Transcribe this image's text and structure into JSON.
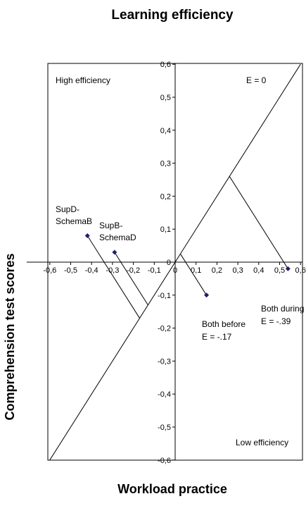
{
  "chart_data": {
    "type": "scatter",
    "title": "Learning efficiency",
    "xlabel": "Workload practice",
    "ylabel": "Comprehension test scores",
    "xlim": [
      -0.6,
      0.6
    ],
    "ylim": [
      -0.6,
      0.6
    ],
    "x_ticks": [
      "-0,6",
      "-0,5",
      "-0,4",
      "-0,3",
      "-0,2",
      "-0,1",
      "0",
      "0,1",
      "0,2",
      "0,3",
      "0,4",
      "0,5",
      "0,6"
    ],
    "y_ticks": [
      "0,6",
      "0,5",
      "0,4",
      "0,3",
      "0,2",
      "0,1",
      "0",
      "-0,1",
      "-0,2",
      "-0,3",
      "-0,4",
      "-0,5",
      "-0,6"
    ],
    "points": [
      {
        "label": "SupD-SchemaB",
        "x": -0.42,
        "y": 0.08
      },
      {
        "label": "SupB-SchemaD",
        "x": -0.29,
        "y": 0.03
      },
      {
        "label": "Both before",
        "x": 0.15,
        "y": -0.1
      },
      {
        "label": "Both during",
        "x": 0.54,
        "y": -0.02
      }
    ],
    "efficiency_line_label": "E = 0",
    "annotations": {
      "high": "High efficiency",
      "low": "Low efficiency",
      "supd_1": "SupD-",
      "supd_2": "SchemaB",
      "supb_1": "SupB-",
      "supb_2": "SchemaD",
      "before_1": "Both before",
      "before_2": "E = -.17",
      "during_1": "Both during",
      "during_2": "E = -.39"
    },
    "colors": {
      "marker": "#1f1f6e",
      "line": "#000000"
    }
  }
}
